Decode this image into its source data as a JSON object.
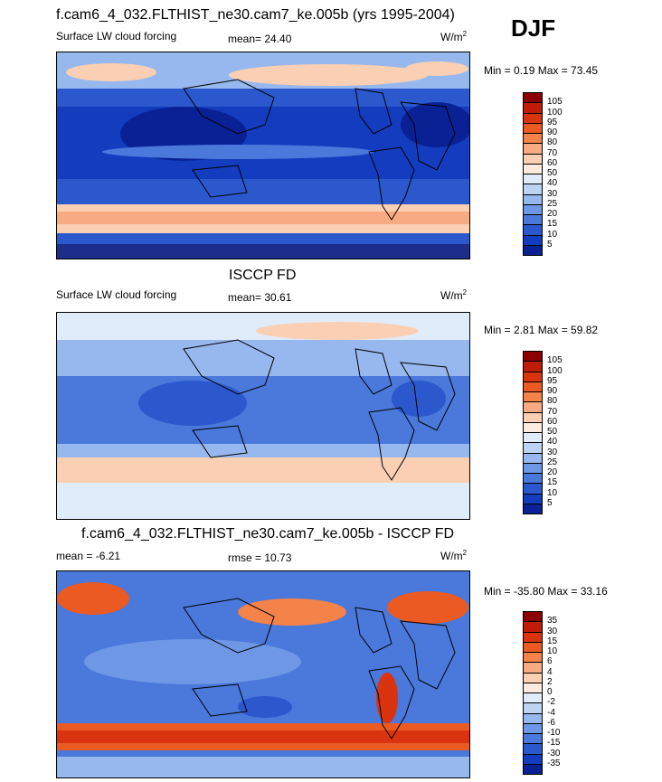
{
  "header": {
    "title": "f.cam6_4_032.FLTHIST_ne30.cam7_ke.005b (yrs 1995-2004)",
    "season": "DJF"
  },
  "panels": [
    {
      "id": "model",
      "title": "",
      "left_label": "Surface LW cloud forcing",
      "center_label": "mean=  24.40",
      "units_base": "W/m",
      "units_sup": "2",
      "minmax": "Min =   0.19 Max =  73.45",
      "colorbar_labels": [
        "105",
        "100",
        "95",
        "90",
        "80",
        "70",
        "60",
        "50",
        "40",
        "30",
        "25",
        "20",
        "15",
        "10",
        "5"
      ],
      "colorbar_colors": [
        "#8b0000",
        "#c11b0a",
        "#d9330f",
        "#ea5a22",
        "#f4834a",
        "#f8ab82",
        "#fbcfb3",
        "#fdebe0",
        "#e1ecfb",
        "#bcd3f4",
        "#97b8ee",
        "#6e98e6",
        "#4a78db",
        "#2c58cd",
        "#133cbf",
        "#0a2196"
      ]
    },
    {
      "id": "obs",
      "title": "ISCCP FD",
      "left_label": "Surface LW cloud forcing",
      "center_label": "mean=  30.61",
      "units_base": "W/m",
      "units_sup": "2",
      "minmax": "Min =   2.81 Max =  59.82",
      "colorbar_labels": [
        "105",
        "100",
        "95",
        "90",
        "80",
        "70",
        "60",
        "50",
        "40",
        "30",
        "25",
        "20",
        "15",
        "10",
        "5"
      ],
      "colorbar_colors": [
        "#8b0000",
        "#c11b0a",
        "#d9330f",
        "#ea5a22",
        "#f4834a",
        "#f8ab82",
        "#fbcfb3",
        "#fdebe0",
        "#e1ecfb",
        "#bcd3f4",
        "#97b8ee",
        "#6e98e6",
        "#4a78db",
        "#2c58cd",
        "#133cbf",
        "#0a2196"
      ]
    },
    {
      "id": "diff",
      "title": "f.cam6_4_032.FLTHIST_ne30.cam7_ke.005b - ISCCP FD",
      "left_label": "mean =  -6.21",
      "center_label": "rmse =  10.73",
      "units_base": "W/m",
      "units_sup": "2",
      "minmax": "Min = -35.80 Max =  33.16",
      "colorbar_labels": [
        "35",
        "30",
        "15",
        "10",
        "6",
        "4",
        "2",
        "0",
        "-2",
        "-4",
        "-6",
        "-10",
        "-15",
        "-30",
        "-35"
      ],
      "colorbar_colors": [
        "#8b0000",
        "#c11b0a",
        "#d9330f",
        "#ea5a22",
        "#f4834a",
        "#f8ab82",
        "#fbcfb3",
        "#fdebe0",
        "#e1ecfb",
        "#bcd3f4",
        "#97b8ee",
        "#6e98e6",
        "#4a78db",
        "#2c58cd",
        "#133cbf",
        "#0a2196"
      ]
    }
  ],
  "chart_data": [
    {
      "type": "heatmap",
      "title": "f.cam6_4_032.FLTHIST_ne30.cam7_ke.005b (yrs 1995-2004)",
      "variable": "Surface LW cloud forcing",
      "season": "DJF",
      "units": "W/m2",
      "mean": 24.4,
      "min": 0.19,
      "max": 73.45,
      "contour_levels": [
        5,
        10,
        15,
        20,
        25,
        30,
        40,
        50,
        60,
        70,
        80,
        90,
        95,
        100,
        105
      ]
    },
    {
      "type": "heatmap",
      "title": "ISCCP FD",
      "variable": "Surface LW cloud forcing",
      "units": "W/m2",
      "mean": 30.61,
      "min": 2.81,
      "max": 59.82,
      "contour_levels": [
        5,
        10,
        15,
        20,
        25,
        30,
        40,
        50,
        60,
        70,
        80,
        90,
        95,
        100,
        105
      ]
    },
    {
      "type": "heatmap",
      "title": "f.cam6_4_032.FLTHIST_ne30.cam7_ke.005b - ISCCP FD",
      "units": "W/m2",
      "mean": -6.21,
      "rmse": 10.73,
      "min": -35.8,
      "max": 33.16,
      "contour_levels": [
        -35,
        -30,
        -15,
        -10,
        -6,
        -4,
        -2,
        0,
        2,
        4,
        6,
        10,
        15,
        30,
        35
      ]
    }
  ]
}
